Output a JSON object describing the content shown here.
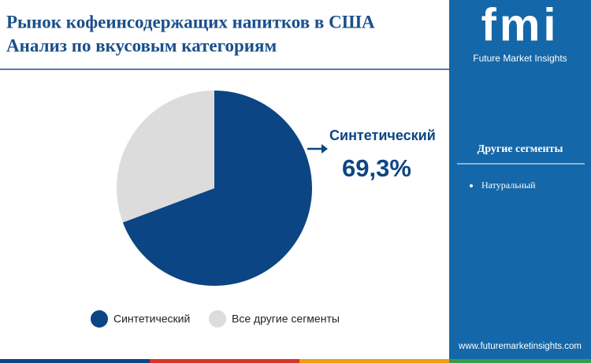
{
  "chart_data": {
    "type": "pie",
    "title": "Рынок кофеинсодержащих напитков в США",
    "subtitle": "Анализ по вкусовым категориям",
    "categories": [
      "Синтетический",
      "Все другие сегменты"
    ],
    "values": [
      69.3,
      30.7
    ],
    "value_labels": [
      "69,3%",
      null
    ],
    "colors": [
      "#0c4583",
      "#dcdcdc"
    ],
    "legend": "bottom"
  },
  "sidebar": {
    "brand": "fmi",
    "brand_name": "Future Market Insights",
    "heading": "Другие сегменты",
    "items": [
      "Натуральный"
    ],
    "website": "www.futuremarketinsights.com"
  }
}
